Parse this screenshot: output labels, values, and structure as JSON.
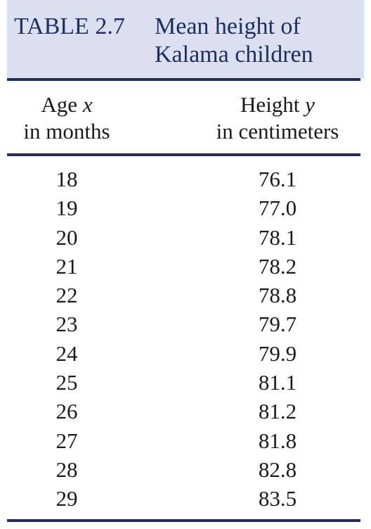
{
  "table": {
    "number": "TABLE 2.7",
    "title_line1": "Mean height of",
    "title_line2": "Kalama children",
    "columns": [
      {
        "line1_text": "Age ",
        "line1_var": "x",
        "line2": "in months"
      },
      {
        "line1_text": "Height ",
        "line1_var": "y",
        "line2": "in centimeters"
      }
    ],
    "rows": [
      {
        "age": "18",
        "height": "76.1"
      },
      {
        "age": "19",
        "height": "77.0"
      },
      {
        "age": "20",
        "height": "78.1"
      },
      {
        "age": "21",
        "height": "78.2"
      },
      {
        "age": "22",
        "height": "78.8"
      },
      {
        "age": "23",
        "height": "79.7"
      },
      {
        "age": "24",
        "height": "79.9"
      },
      {
        "age": "25",
        "height": "81.1"
      },
      {
        "age": "26",
        "height": "81.2"
      },
      {
        "age": "27",
        "height": "81.8"
      },
      {
        "age": "28",
        "height": "82.8"
      },
      {
        "age": "29",
        "height": "83.5"
      }
    ]
  },
  "colors": {
    "header_band": "#dcdff0",
    "title_text": "#1c2f63",
    "rule": "#1f2f5c",
    "body_text": "#1a1a1a"
  }
}
